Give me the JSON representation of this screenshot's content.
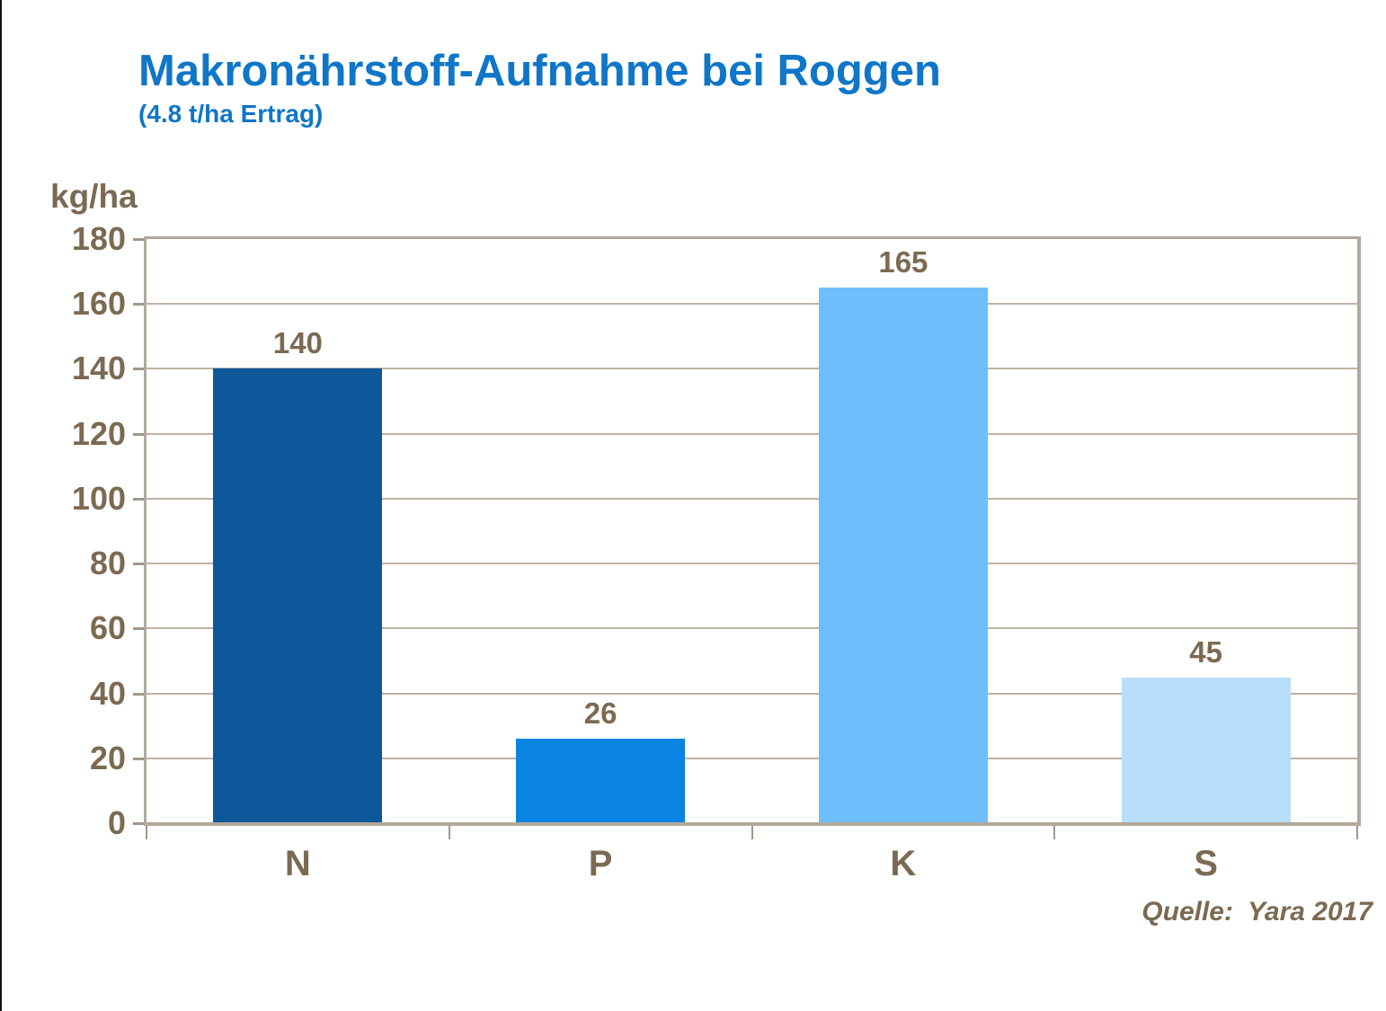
{
  "header": {
    "title": "Makronährstoff-Aufnahme bei Roggen",
    "subtitle": "(4.8 t/ha Ertrag)"
  },
  "source": {
    "label": "Quelle:",
    "value": "Yara 2017"
  },
  "chart_data": {
    "type": "bar",
    "title": "Makronährstoff-Aufnahme bei Roggen (4.8 t/ha Ertrag)",
    "categories": [
      "N",
      "P",
      "K",
      "S"
    ],
    "values": [
      140,
      26,
      165,
      45
    ],
    "value_labels": [
      "140",
      "26",
      "165",
      "45"
    ],
    "bar_colors": [
      "#0D589B",
      "#0A84E2",
      "#6DBEFB",
      "#B9DEF9"
    ],
    "xlabel": "",
    "ylabel": "kg/ha",
    "ylim": [
      0,
      180
    ],
    "ytick_step": 20,
    "ytick_labels": [
      "0",
      "20",
      "40",
      "60",
      "80",
      "100",
      "120",
      "140",
      "160",
      "180"
    ],
    "grid": true,
    "legend": "none"
  },
  "colors": {
    "title_blue": "#0F76C8",
    "text_brown": "#7B6A52",
    "frame_tan": "#B3A89C",
    "gridline_tan": "#BDB2A3",
    "tick_tan": "#A2978A",
    "background": "#FFFFFF"
  }
}
